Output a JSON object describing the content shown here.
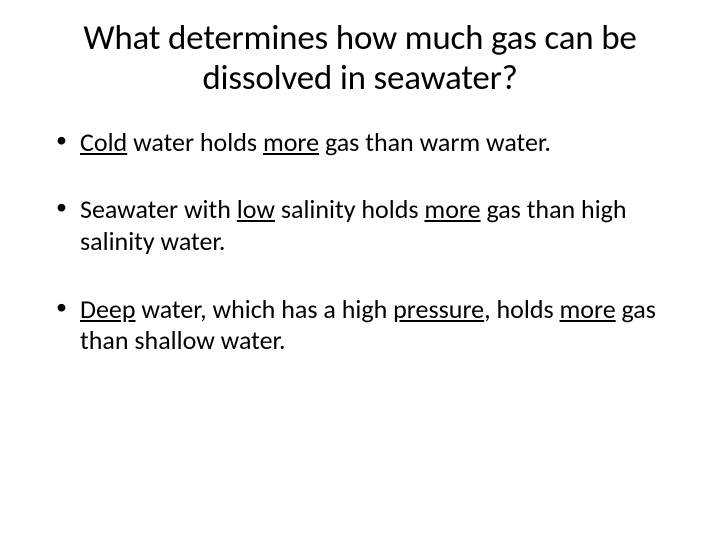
{
  "slide": {
    "background_color": "#ffffff",
    "text_color": "#000000",
    "title": {
      "line1": "What determines how much gas can be",
      "line2": "dissolved in seawater?",
      "fontsize": 35,
      "align": "center"
    },
    "bullets": {
      "fontsize": 26,
      "marker": "•",
      "items": [
        {
          "runs": [
            {
              "t": "Cold",
              "u": true
            },
            {
              "t": " water holds "
            },
            {
              "t": "more",
              "u": true
            },
            {
              "t": " gas than warm water."
            }
          ]
        },
        {
          "runs": [
            {
              "t": "Seawater with "
            },
            {
              "t": "low",
              "u": true
            },
            {
              "t": " salinity holds "
            },
            {
              "t": "more",
              "u": true
            },
            {
              "t": " gas than high salinity water."
            }
          ]
        },
        {
          "runs": [
            {
              "t": "Deep",
              "u": true
            },
            {
              "t": " water, which has a high "
            },
            {
              "t": "pressure",
              "u": true
            },
            {
              "t": ", holds "
            },
            {
              "t": "more",
              "u": true
            },
            {
              "t": " gas than shallow water."
            }
          ]
        }
      ]
    }
  }
}
